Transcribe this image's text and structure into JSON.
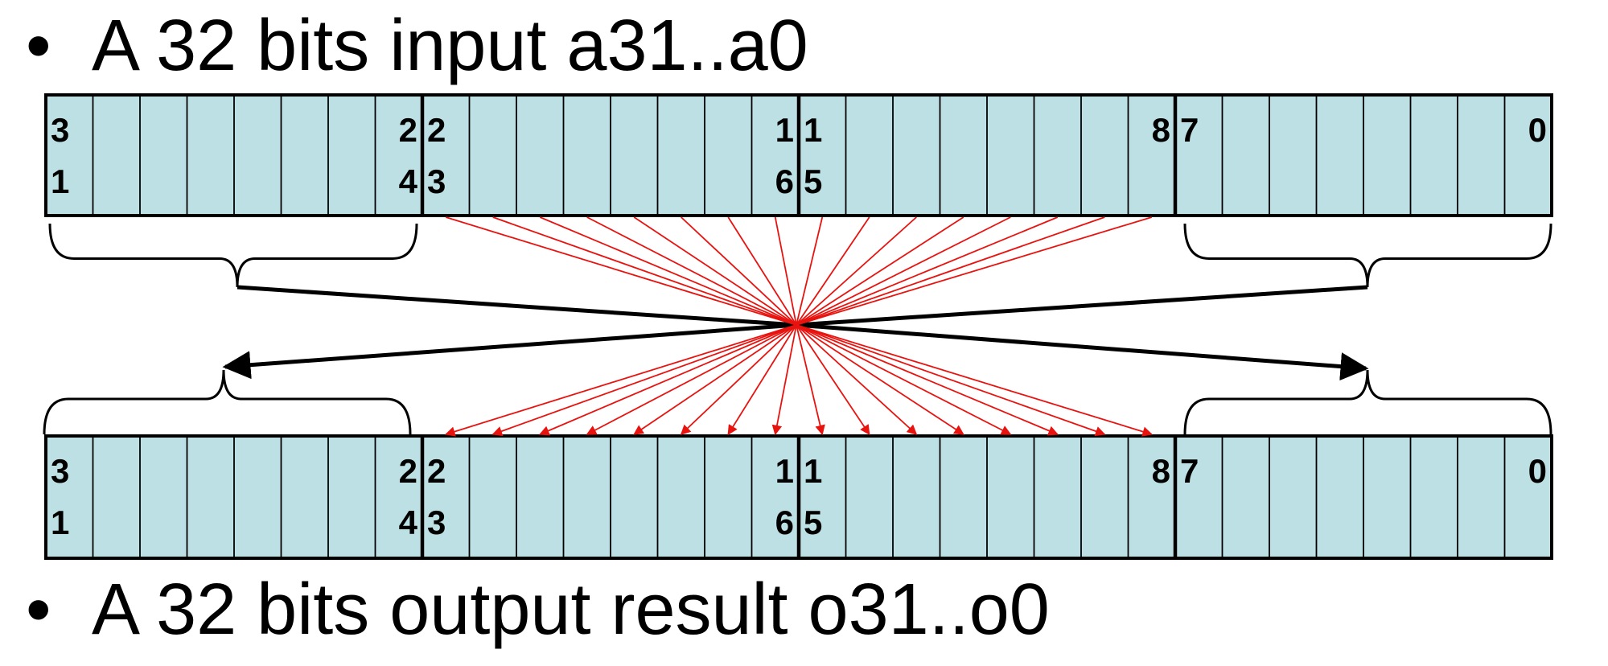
{
  "bullets": {
    "top": "A 32 bits input a31..a0",
    "bottom": "A 32 bits output result o31..o0",
    "marker": "•"
  },
  "registers": {
    "input": {
      "labels": {
        "b31": [
          "3",
          "1"
        ],
        "b24": [
          "2",
          "4"
        ],
        "b23": [
          "2",
          "3"
        ],
        "b16": [
          "1",
          "6"
        ],
        "b15": [
          "1",
          "5"
        ],
        "b8": [
          "8",
          ""
        ],
        "b7": [
          "7",
          ""
        ],
        "b0": [
          "0",
          ""
        ]
      }
    },
    "output": {
      "labels": {
        "b31": [
          "3",
          "1"
        ],
        "b24": [
          "2",
          "4"
        ],
        "b23": [
          "2",
          "3"
        ],
        "b16": [
          "1",
          "6"
        ],
        "b15": [
          "1",
          "5"
        ],
        "b8": [
          "8",
          ""
        ],
        "b7": [
          "7",
          ""
        ],
        "b0": [
          "0",
          ""
        ]
      }
    }
  },
  "colors": {
    "cell_fill": "#bde0e4",
    "border": "#000000",
    "red_wire": "#e8130f",
    "black_wire": "#000000"
  }
}
